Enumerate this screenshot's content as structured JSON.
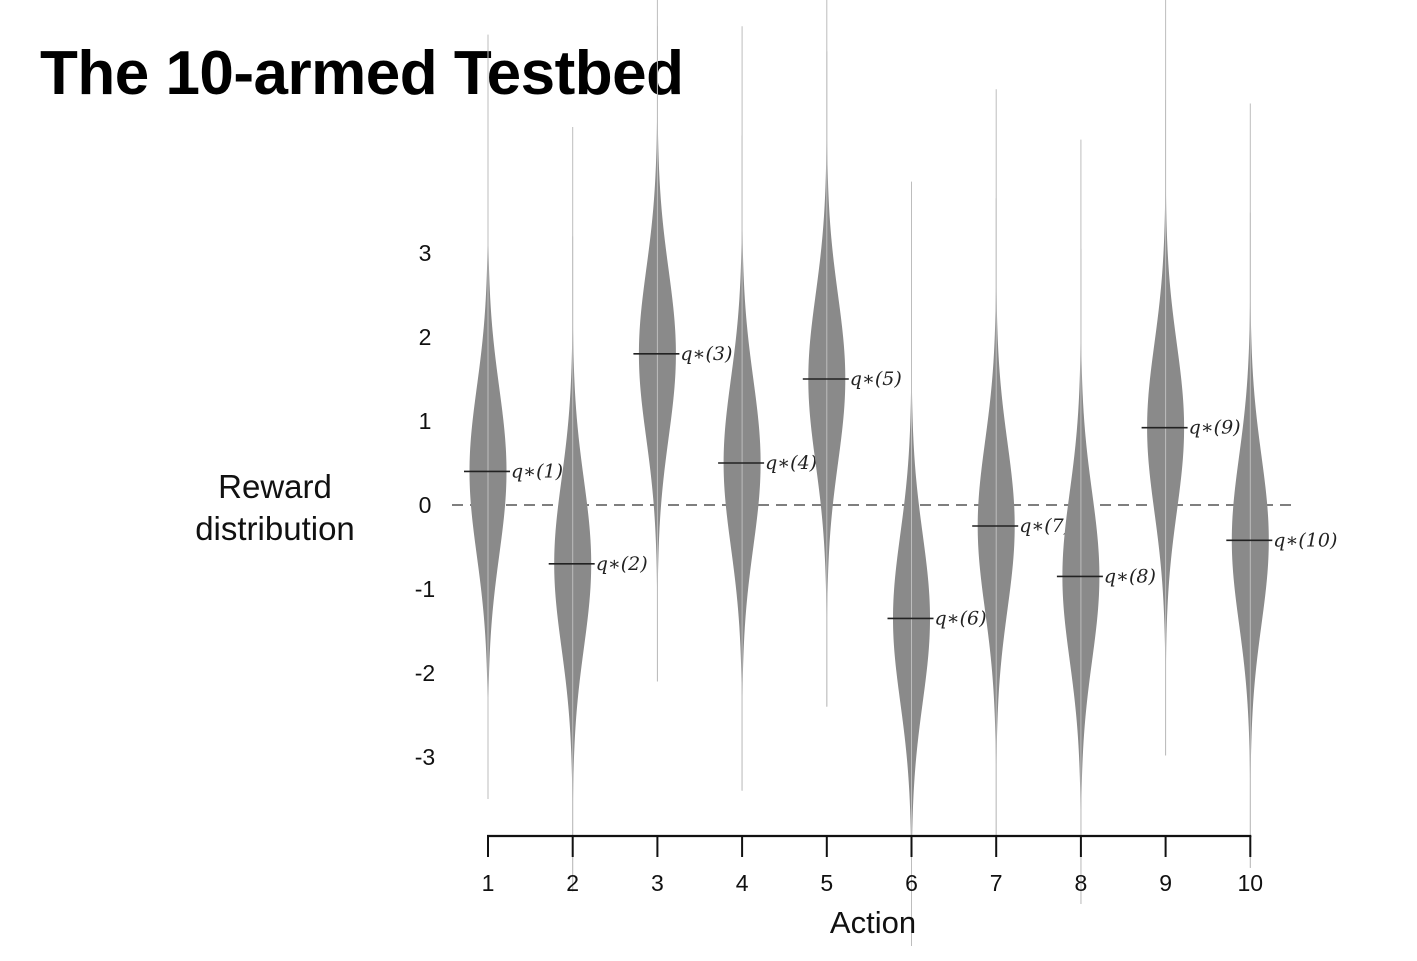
{
  "title": "The 10-armed Testbed",
  "chart_data": {
    "type": "violin",
    "title": "The 10-armed Testbed",
    "ylabel_lines": [
      "Reward",
      "distribution"
    ],
    "xlabel": "Action",
    "categories": [
      "1",
      "2",
      "3",
      "4",
      "5",
      "6",
      "7",
      "8",
      "9",
      "10"
    ],
    "yticks": [
      3,
      2,
      1,
      0,
      -1,
      -2,
      -3
    ],
    "ytick_labels": [
      "3",
      "2",
      "1",
      "0",
      "-1",
      "-2",
      "-3"
    ],
    "mean_values": [
      0.4,
      -0.7,
      1.8,
      0.5,
      1.5,
      -1.35,
      -0.25,
      -0.85,
      0.92,
      -0.42
    ],
    "std": 1,
    "mean_labels": [
      "q∗(1)",
      "q∗(2)",
      "q∗(3)",
      "q∗(4)",
      "q∗(5)",
      "q∗(6)",
      "q∗(7)",
      "q∗(8)",
      "q∗(9)",
      "q∗(10)"
    ],
    "reference_line": 0,
    "reference_line_style": "dashed",
    "violin_color": "#8a8a8a",
    "grid": false
  }
}
